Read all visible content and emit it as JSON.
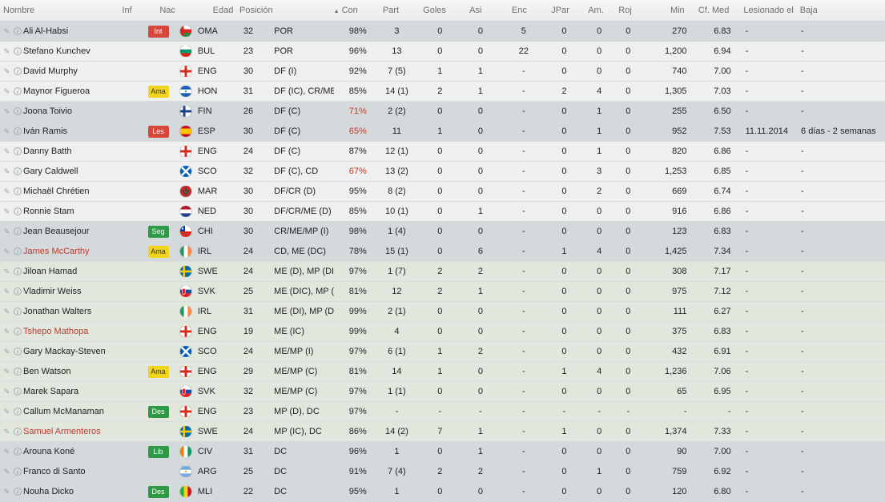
{
  "columns": {
    "nombre": "Nombre",
    "inf": "Inf",
    "nac": "Nac",
    "edad": "Edad",
    "pos": "Posición",
    "con": "Con",
    "part": "Part",
    "goles": "Goles",
    "asi": "Asi",
    "enc": "Enc",
    "jpar": "JPar",
    "am": "Am.",
    "roj": "Roj",
    "min": "Min",
    "cf": "Cf. Med",
    "les": "Lesionado el",
    "baja": "Baja"
  },
  "sort": {
    "column": "con",
    "direction": "asc",
    "icon": "sort-up-icon"
  },
  "colors": {
    "row_grey": "#d4dadc",
    "row_white": "#eef0ef",
    "row_green": "#e2e7dd",
    "red_text": "#c0392b",
    "badge_red": "#d9463b",
    "badge_yellow": "#f2d51a",
    "badge_green": "#2f9a45"
  },
  "players": [
    {
      "name": "Ali Al-Habsi",
      "inf": "Int",
      "inf_color": "red",
      "flag": "oman",
      "nac": "OMA",
      "edad": "32",
      "pos": "POR",
      "con": "98%",
      "con_red": false,
      "part": "3",
      "goles": "0",
      "asi": "0",
      "enc": "5",
      "jpar": "0",
      "am": "0",
      "roj": "0",
      "min": "270",
      "cf": "6.83",
      "les": "-",
      "baja": "-",
      "shade": "g",
      "red": false
    },
    {
      "name": "Stefano Kunchev",
      "inf": "",
      "flag": "bulgaria",
      "nac": "BUL",
      "edad": "23",
      "pos": "POR",
      "con": "96%",
      "part": "13",
      "goles": "0",
      "asi": "0",
      "enc": "22",
      "jpar": "0",
      "am": "0",
      "roj": "0",
      "min": "1,200",
      "cf": "6.94",
      "les": "-",
      "baja": "-",
      "shade": "w"
    },
    {
      "name": "David Murphy",
      "inf": "",
      "flag": "england",
      "nac": "ENG",
      "edad": "30",
      "pos": "DF (I)",
      "con": "92%",
      "part": "7 (5)",
      "goles": "1",
      "asi": "1",
      "enc": "-",
      "jpar": "0",
      "am": "0",
      "roj": "0",
      "min": "740",
      "cf": "7.00",
      "les": "-",
      "baja": "-",
      "shade": "w"
    },
    {
      "name": "Maynor Figueroa",
      "inf": "Ama",
      "inf_color": "yel",
      "flag": "honduras",
      "nac": "HON",
      "edad": "31",
      "pos": "DF (IC), CR/ME (I)",
      "con": "85%",
      "part": "14 (1)",
      "goles": "2",
      "asi": "1",
      "enc": "-",
      "jpar": "2",
      "am": "4",
      "roj": "0",
      "min": "1,305",
      "cf": "7.03",
      "les": "-",
      "baja": "-",
      "shade": "w"
    },
    {
      "name": "Joona Toivio",
      "inf": "",
      "flag": "finland",
      "nac": "FIN",
      "edad": "26",
      "pos": "DF (C)",
      "con": "71%",
      "con_red": true,
      "part": "2 (2)",
      "goles": "0",
      "asi": "0",
      "enc": "-",
      "jpar": "0",
      "am": "1",
      "roj": "0",
      "min": "255",
      "cf": "6.50",
      "les": "-",
      "baja": "-",
      "shade": "g"
    },
    {
      "name": "Iván Ramis",
      "inf": "Les",
      "inf_color": "red",
      "flag": "spain",
      "nac": "ESP",
      "edad": "30",
      "pos": "DF (C)",
      "con": "65%",
      "con_red": true,
      "part": "11",
      "goles": "1",
      "asi": "0",
      "enc": "-",
      "jpar": "0",
      "am": "1",
      "roj": "0",
      "min": "952",
      "cf": "7.53",
      "les": "11.11.2014",
      "baja": "6 días - 2 semanas",
      "shade": "g"
    },
    {
      "name": "Danny Batth",
      "inf": "",
      "flag": "england",
      "nac": "ENG",
      "edad": "24",
      "pos": "DF (C)",
      "con": "87%",
      "part": "12 (1)",
      "goles": "0",
      "asi": "0",
      "enc": "-",
      "jpar": "0",
      "am": "1",
      "roj": "0",
      "min": "820",
      "cf": "6.86",
      "les": "-",
      "baja": "-",
      "shade": "w"
    },
    {
      "name": "Gary Caldwell",
      "inf": "",
      "flag": "scotland",
      "nac": "SCO",
      "edad": "32",
      "pos": "DF (C), CD",
      "con": "67%",
      "con_red": true,
      "part": "13 (2)",
      "goles": "0",
      "asi": "0",
      "enc": "-",
      "jpar": "0",
      "am": "3",
      "roj": "0",
      "min": "1,253",
      "cf": "6.85",
      "les": "-",
      "baja": "-",
      "shade": "w"
    },
    {
      "name": "Michaël Chrétien",
      "inf": "",
      "flag": "morocco",
      "nac": "MAR",
      "edad": "30",
      "pos": "DF/CR (D)",
      "con": "95%",
      "part": "8 (2)",
      "goles": "0",
      "asi": "0",
      "enc": "-",
      "jpar": "0",
      "am": "2",
      "roj": "0",
      "min": "669",
      "cf": "6.74",
      "les": "-",
      "baja": "-",
      "shade": "w"
    },
    {
      "name": "Ronnie Stam",
      "inf": "",
      "flag": "netherlands",
      "nac": "NED",
      "edad": "30",
      "pos": "DF/CR/ME (D)",
      "con": "85%",
      "part": "10 (1)",
      "goles": "0",
      "asi": "1",
      "enc": "-",
      "jpar": "0",
      "am": "0",
      "roj": "0",
      "min": "916",
      "cf": "6.86",
      "les": "-",
      "baja": "-",
      "shade": "w"
    },
    {
      "name": "Jean Beausejour",
      "inf": "Seg",
      "inf_color": "grn",
      "flag": "chile",
      "nac": "CHI",
      "edad": "30",
      "pos": "CR/ME/MP (I)",
      "con": "98%",
      "part": "1 (4)",
      "goles": "0",
      "asi": "0",
      "enc": "-",
      "jpar": "0",
      "am": "0",
      "roj": "0",
      "min": "123",
      "cf": "6.83",
      "les": "-",
      "baja": "-",
      "shade": "g"
    },
    {
      "name": "James McCarthy",
      "inf": "Ama",
      "inf_color": "yel",
      "flag": "ireland",
      "nac": "IRL",
      "edad": "24",
      "pos": "CD, ME (DC)",
      "con": "78%",
      "part": "15 (1)",
      "goles": "0",
      "asi": "6",
      "enc": "-",
      "jpar": "1",
      "am": "4",
      "roj": "0",
      "min": "1,425",
      "cf": "7.34",
      "les": "-",
      "baja": "-",
      "shade": "g",
      "red": true
    },
    {
      "name": "Jiloan Hamad",
      "inf": "",
      "flag": "sweden",
      "nac": "SWE",
      "edad": "24",
      "pos": "ME (D), MP (DI)",
      "con": "97%",
      "part": "1 (7)",
      "goles": "2",
      "asi": "2",
      "enc": "-",
      "jpar": "0",
      "am": "0",
      "roj": "0",
      "min": "308",
      "cf": "7.17",
      "les": "-",
      "baja": "-",
      "shade": "gr"
    },
    {
      "name": "Vladimir Weiss",
      "inf": "",
      "flag": "slovakia",
      "nac": "SVK",
      "edad": "25",
      "pos": "ME (DIC), MP (DC)",
      "con": "81%",
      "part": "12",
      "goles": "2",
      "asi": "1",
      "enc": "-",
      "jpar": "0",
      "am": "0",
      "roj": "0",
      "min": "975",
      "cf": "7.12",
      "les": "-",
      "baja": "-",
      "shade": "gr"
    },
    {
      "name": "Jonathan Walters",
      "inf": "",
      "flag": "ireland",
      "nac": "IRL",
      "edad": "31",
      "pos": "ME (DI), MP (DIC), ...",
      "con": "99%",
      "part": "2 (1)",
      "goles": "0",
      "asi": "0",
      "enc": "-",
      "jpar": "0",
      "am": "0",
      "roj": "0",
      "min": "111",
      "cf": "6.27",
      "les": "-",
      "baja": "-",
      "shade": "gr"
    },
    {
      "name": "Tshepo Mathopa",
      "inf": "",
      "flag": "england",
      "nac": "ENG",
      "edad": "19",
      "pos": "ME (IC)",
      "con": "99%",
      "part": "4",
      "goles": "0",
      "asi": "0",
      "enc": "-",
      "jpar": "0",
      "am": "0",
      "roj": "0",
      "min": "375",
      "cf": "6.83",
      "les": "-",
      "baja": "-",
      "shade": "gr",
      "red": true
    },
    {
      "name": "Gary Mackay-Steven",
      "inf": "",
      "flag": "scotland",
      "nac": "SCO",
      "edad": "24",
      "pos": "ME/MP (I)",
      "con": "97%",
      "part": "6 (1)",
      "goles": "1",
      "asi": "2",
      "enc": "-",
      "jpar": "0",
      "am": "0",
      "roj": "0",
      "min": "432",
      "cf": "6.91",
      "les": "-",
      "baja": "-",
      "shade": "gr"
    },
    {
      "name": "Ben Watson",
      "inf": "Ama",
      "inf_color": "yel",
      "flag": "england",
      "nac": "ENG",
      "edad": "29",
      "pos": "ME/MP (C)",
      "con": "81%",
      "part": "14",
      "goles": "1",
      "asi": "0",
      "enc": "-",
      "jpar": "1",
      "am": "4",
      "roj": "0",
      "min": "1,236",
      "cf": "7.06",
      "les": "-",
      "baja": "-",
      "shade": "gr"
    },
    {
      "name": "Marek Sapara",
      "inf": "",
      "flag": "slovakia",
      "nac": "SVK",
      "edad": "32",
      "pos": "ME/MP (C)",
      "con": "97%",
      "part": "1 (1)",
      "goles": "0",
      "asi": "0",
      "enc": "-",
      "jpar": "0",
      "am": "0",
      "roj": "0",
      "min": "65",
      "cf": "6.95",
      "les": "-",
      "baja": "-",
      "shade": "gr"
    },
    {
      "name": "Callum McManaman",
      "inf": "Des",
      "inf_color": "grn",
      "flag": "england",
      "nac": "ENG",
      "edad": "23",
      "pos": "MP (D), DC",
      "con": "97%",
      "part": "-",
      "goles": "-",
      "asi": "-",
      "enc": "-",
      "jpar": "-",
      "am": "-",
      "roj": "-",
      "min": "-",
      "cf": "-",
      "les": "-",
      "baja": "-",
      "shade": "gr"
    },
    {
      "name": "Samuel Armenteros",
      "inf": "",
      "flag": "sweden",
      "nac": "SWE",
      "edad": "24",
      "pos": "MP (IC), DC",
      "con": "86%",
      "part": "14 (2)",
      "goles": "7",
      "asi": "1",
      "enc": "-",
      "jpar": "1",
      "am": "0",
      "roj": "0",
      "min": "1,374",
      "cf": "7.33",
      "les": "-",
      "baja": "-",
      "shade": "gr",
      "red": true
    },
    {
      "name": "Arouna Koné",
      "inf": "Lib",
      "inf_color": "grn",
      "flag": "ivorycoast",
      "nac": "CIV",
      "edad": "31",
      "pos": "DC",
      "con": "96%",
      "part": "1",
      "goles": "0",
      "asi": "1",
      "enc": "-",
      "jpar": "0",
      "am": "0",
      "roj": "0",
      "min": "90",
      "cf": "7.00",
      "les": "-",
      "baja": "-",
      "shade": "g"
    },
    {
      "name": "Franco di Santo",
      "inf": "",
      "flag": "argentina",
      "nac": "ARG",
      "edad": "25",
      "pos": "DC",
      "con": "91%",
      "part": "7 (4)",
      "goles": "2",
      "asi": "2",
      "enc": "-",
      "jpar": "0",
      "am": "1",
      "roj": "0",
      "min": "759",
      "cf": "6.92",
      "les": "-",
      "baja": "-",
      "shade": "g"
    },
    {
      "name": "Nouha Dicko",
      "inf": "Des",
      "inf_color": "grn",
      "flag": "mali",
      "nac": "MLI",
      "edad": "22",
      "pos": "DC",
      "con": "95%",
      "part": "1",
      "goles": "0",
      "asi": "0",
      "enc": "-",
      "jpar": "0",
      "am": "0",
      "roj": "0",
      "min": "120",
      "cf": "6.80",
      "les": "-",
      "baja": "-",
      "shade": "g"
    }
  ]
}
